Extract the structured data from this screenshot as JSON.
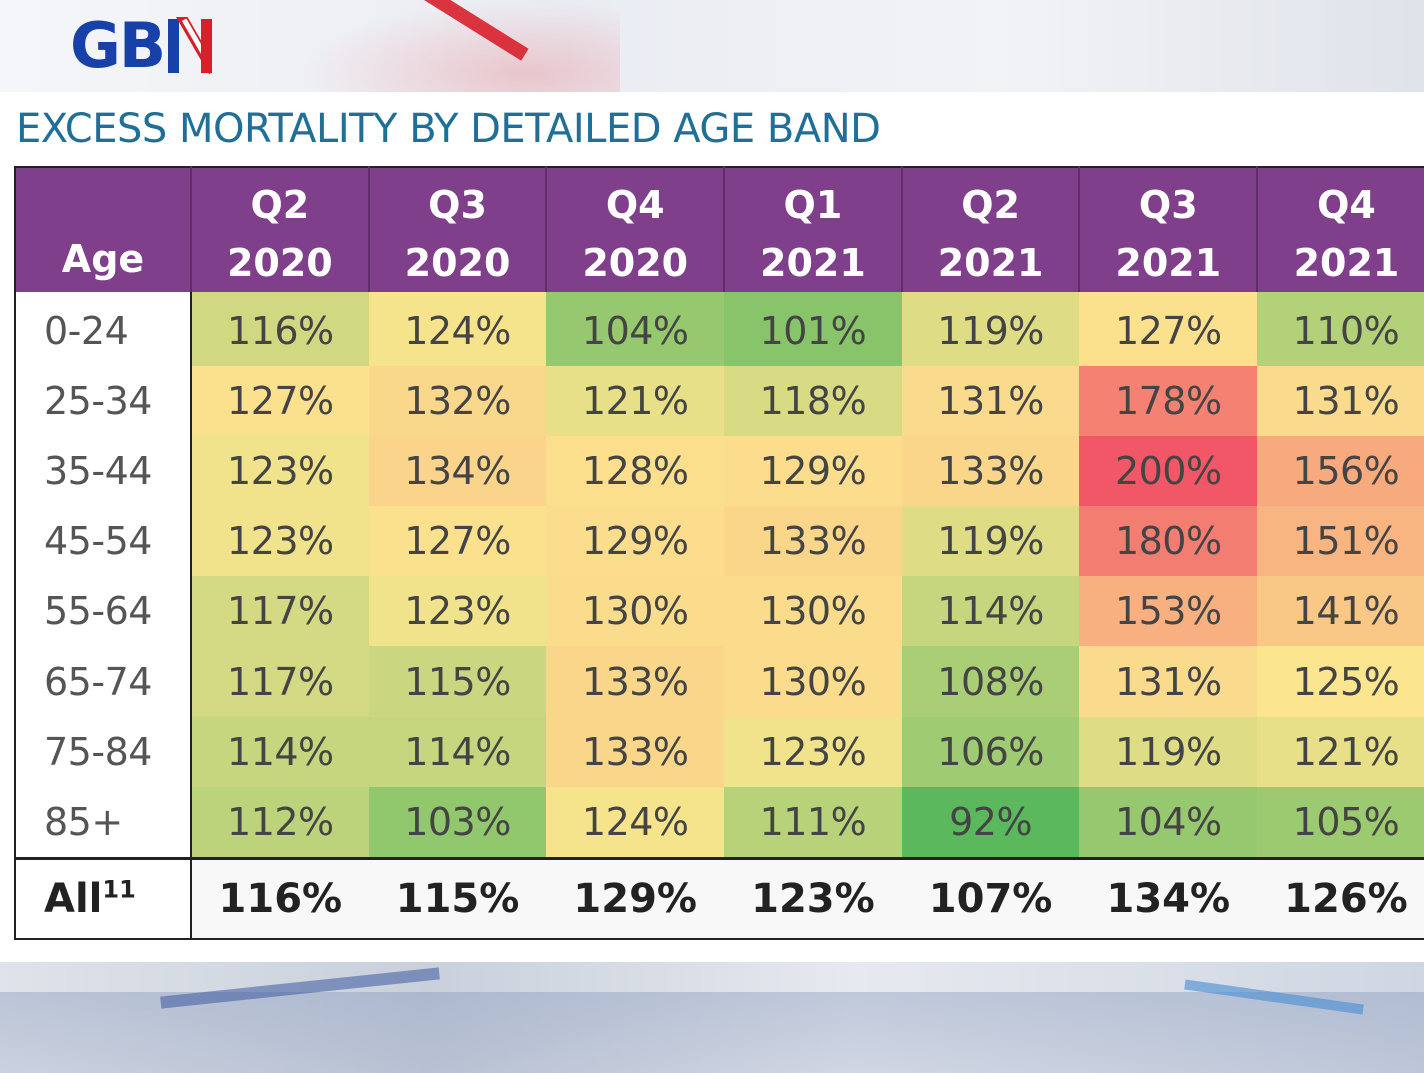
{
  "brand": {
    "logo_text": "GB",
    "logo_mark": "gb-news-flag-mark-icon"
  },
  "colors": {
    "header_bg": "#7f3f8b",
    "title": "#1f6f98",
    "brand_blue": "#1740a8",
    "brand_red": "#d8202b",
    "scale_low": "#5cb85c",
    "scale_mid": "#fbe58f",
    "scale_high": "#f25767"
  },
  "chart_data": {
    "type": "heatmap",
    "title": "EXCESS MORTALITY BY DETAILED AGE BAND",
    "row_header": "Age",
    "columns": [
      {
        "q": "Q2",
        "year": "2020"
      },
      {
        "q": "Q3",
        "year": "2020"
      },
      {
        "q": "Q4",
        "year": "2020"
      },
      {
        "q": "Q1",
        "year": "2021"
      },
      {
        "q": "Q2",
        "year": "2021"
      },
      {
        "q": "Q3",
        "year": "2021"
      },
      {
        "q": "Q4",
        "year": "2021"
      }
    ],
    "rows": [
      {
        "age": "0-24",
        "values": [
          116,
          124,
          104,
          101,
          119,
          127,
          110
        ]
      },
      {
        "age": "25-34",
        "values": [
          127,
          132,
          121,
          118,
          131,
          178,
          131
        ]
      },
      {
        "age": "35-44",
        "values": [
          123,
          134,
          128,
          129,
          133,
          200,
          156
        ]
      },
      {
        "age": "45-54",
        "values": [
          123,
          127,
          129,
          133,
          119,
          180,
          151
        ]
      },
      {
        "age": "55-64",
        "values": [
          117,
          123,
          130,
          130,
          114,
          153,
          141
        ]
      },
      {
        "age": "65-74",
        "values": [
          117,
          115,
          133,
          130,
          108,
          131,
          125
        ]
      },
      {
        "age": "75-84",
        "values": [
          114,
          114,
          133,
          123,
          106,
          119,
          121
        ]
      },
      {
        "age": "85+",
        "values": [
          112,
          103,
          124,
          111,
          92,
          104,
          105
        ]
      }
    ],
    "total": {
      "label": "All",
      "superscript": "11",
      "values": [
        116,
        115,
        129,
        123,
        107,
        134,
        126
      ]
    },
    "value_suffix": "%",
    "color_scale": {
      "min": 92,
      "mid": 125,
      "max": 200
    }
  }
}
